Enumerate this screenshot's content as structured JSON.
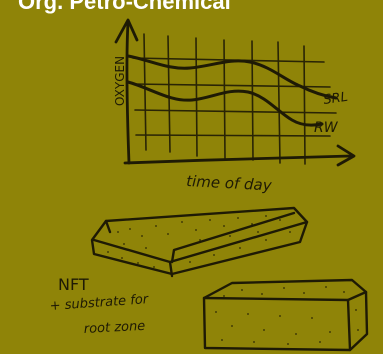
{
  "header": {
    "title": "Org. Petro-Chemical"
  },
  "sketch": {
    "graph": {
      "ylabel": "OXYGEN",
      "xlabel": "time of day",
      "series": [
        {
          "name": "SRL"
        },
        {
          "name": "RW"
        }
      ]
    },
    "note": {
      "lines": [
        "NFT",
        "+ substrate for",
        "root zone"
      ]
    }
  },
  "colors": {
    "background": "#8f8408",
    "ink": "#1e1a05",
    "title": "#ffffff"
  }
}
